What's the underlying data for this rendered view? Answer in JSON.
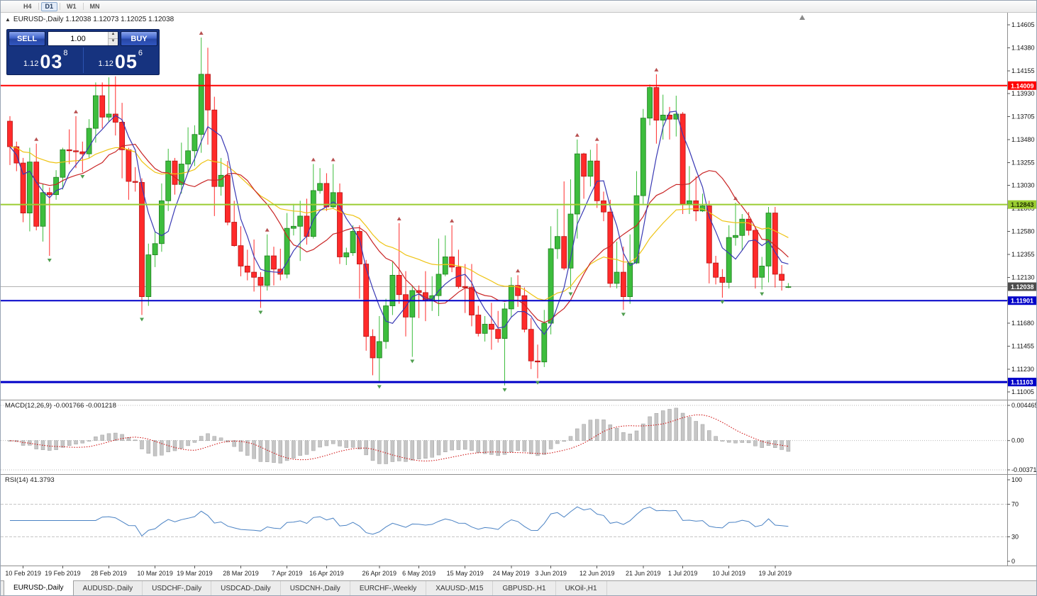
{
  "toolbar": {
    "periods": [
      {
        "label": "H4",
        "active": false
      },
      {
        "label": "D1",
        "active": true
      },
      {
        "label": "W1",
        "active": false
      },
      {
        "label": "MN",
        "active": false
      }
    ]
  },
  "chart_header": {
    "caption": "EURUSD-,Daily 1.12038 1.12073 1.12025 1.12038"
  },
  "trade_panel": {
    "sell_label": "SELL",
    "buy_label": "BUY",
    "volume": "1.00",
    "sell_prefix": "1.12",
    "sell_big": "03",
    "sell_sup": "8",
    "buy_prefix": "1.12",
    "buy_big": "05",
    "buy_sup": "6"
  },
  "price_axis": {
    "ticks": [
      "1.14605",
      "1.14380",
      "1.14155",
      "1.13930",
      "1.13705",
      "1.13480",
      "1.13255",
      "1.13030",
      "1.12805",
      "1.12580",
      "1.12355",
      "1.12130",
      "1.11905",
      "1.11680",
      "1.11455",
      "1.11230",
      "1.11005"
    ]
  },
  "current_price": {
    "value": 1.12038,
    "label": "1.12038",
    "label_bg": "#4d4d4d",
    "label_color": "#ffffff",
    "line_color": "#b2b2b2"
  },
  "hlines": [
    {
      "price": 1.14009,
      "color": "#ff0000",
      "width": 2,
      "label": "1.14009",
      "label_bg": "#ff0000",
      "label_color": "#ffffff"
    },
    {
      "price": 1.12843,
      "color": "#9acd32",
      "width": 2,
      "label": "1.12843",
      "label_bg": "#9acd32",
      "label_color": "#223300"
    },
    {
      "price": 1.11901,
      "color": "#0000c8",
      "width": 2,
      "label": "1.11901",
      "label_bg": "#0000c8",
      "label_color": "#ffffff"
    },
    {
      "price": 1.11103,
      "color": "#0000c8",
      "width": 3,
      "label": "1.11103",
      "label_bg": "#0000c8",
      "label_color": "#ffffff"
    }
  ],
  "macd": {
    "label": "MACD(12,26,9) -0.001766 -0.001218",
    "value": "-0.001766",
    "signal_value": "-0.001218",
    "fast": 12,
    "slow": 26,
    "signal": 9,
    "range": [
      -0.003715,
      0.004465
    ],
    "axis": [
      {
        "text": "0.004465",
        "value": 0.004465
      },
      {
        "text": "0.00",
        "value": 0
      },
      {
        "text": "-0.003715",
        "value": -0.003715
      }
    ],
    "bar_color": "#c6c6c6",
    "bar_border": "#9f9f9f",
    "signal_color": "#cc0000"
  },
  "rsi": {
    "label": "RSI(14) 41.3793",
    "period": 14,
    "value": 41.3793,
    "axis": [
      {
        "text": "100",
        "value": 100
      },
      {
        "text": "70",
        "value": 70
      },
      {
        "text": "30",
        "value": 30
      },
      {
        "text": "0",
        "value": 0
      }
    ],
    "levels": [
      70,
      30
    ],
    "line_color": "#4a82c4"
  },
  "time_axis": {
    "labels": [
      {
        "text": "10 Feb 2019",
        "index": 2
      },
      {
        "text": "19 Feb 2019",
        "index": 8
      },
      {
        "text": "28 Feb 2019",
        "index": 15
      },
      {
        "text": "10 Mar 2019",
        "index": 22
      },
      {
        "text": "19 Mar 2019",
        "index": 28
      },
      {
        "text": "28 Mar 2019",
        "index": 35
      },
      {
        "text": "7 Apr 2019",
        "index": 42
      },
      {
        "text": "16 Apr 2019",
        "index": 48
      },
      {
        "text": "26 Apr 2019",
        "index": 56
      },
      {
        "text": "6 May 2019",
        "index": 62
      },
      {
        "text": "15 May 2019",
        "index": 69
      },
      {
        "text": "24 May 2019",
        "index": 76
      },
      {
        "text": "3 Jun 2019",
        "index": 82
      },
      {
        "text": "12 Jun 2019",
        "index": 89
      },
      {
        "text": "21 Jun 2019",
        "index": 96
      },
      {
        "text": "1 Jul 2019",
        "index": 102
      },
      {
        "text": "10 Jul 2019",
        "index": 109
      },
      {
        "text": "19 Jul 2019",
        "index": 116
      }
    ]
  },
  "tabs": [
    {
      "label": "EURUSD-,Daily",
      "active": true
    },
    {
      "label": "AUDUSD-,Daily",
      "active": false
    },
    {
      "label": "USDCHF-,Daily",
      "active": false
    },
    {
      "label": "USDCAD-,Daily",
      "active": false
    },
    {
      "label": "USDCNH-,Daily",
      "active": false
    },
    {
      "label": "EURCHF-,Weekly",
      "active": false
    },
    {
      "label": "XAUUSD-,M15",
      "active": false
    },
    {
      "label": "GBPUSD-,H1",
      "active": false
    },
    {
      "label": "UKOil-,H1",
      "active": false
    }
  ],
  "fractals": {
    "up_color": "#b85050",
    "down_color": "#4f9e4f"
  },
  "chart_data": {
    "type": "candlestick",
    "symbol": "EURUSD-",
    "timeframe": "Daily",
    "ohlc_current": {
      "open": 1.12038,
      "high": 1.12073,
      "low": 1.12025,
      "close": 1.12038
    },
    "ylim": [
      1.1093,
      1.1473
    ],
    "up_color": "#3dbd3d",
    "up_border": "#1e7d1e",
    "down_color": "#ff2a2a",
    "down_border": "#b31212",
    "moving_averages": [
      {
        "name": "slow",
        "period": 30,
        "method": "ema",
        "color": "#eec312"
      },
      {
        "name": "medium",
        "period": 13,
        "method": "sma",
        "color": "#c92525"
      },
      {
        "name": "fast",
        "period": 5,
        "method": "sma",
        "color": "#3939b4"
      }
    ],
    "candles": [
      [
        "2019-02-07",
        1.1366,
        1.1371,
        1.1323,
        1.1341
      ],
      [
        "2019-02-08",
        1.1341,
        1.1346,
        1.1317,
        1.1325
      ],
      [
        "2019-02-11",
        1.1325,
        1.133,
        1.1267,
        1.1276
      ],
      [
        "2019-02-12",
        1.1276,
        1.134,
        1.1258,
        1.1326
      ],
      [
        "2019-02-13",
        1.1326,
        1.1344,
        1.1259,
        1.1263
      ],
      [
        "2019-02-14",
        1.1263,
        1.1305,
        1.1248,
        1.1296
      ],
      [
        "2019-02-15",
        1.1296,
        1.1301,
        1.1234,
        1.1294
      ],
      [
        "2019-02-18",
        1.1294,
        1.1318,
        1.1289,
        1.1311
      ],
      [
        "2019-02-19",
        1.1311,
        1.134,
        1.1299,
        1.1338
      ],
      [
        "2019-02-20",
        1.1338,
        1.1358,
        1.1324,
        1.1337
      ],
      [
        "2019-02-21",
        1.1337,
        1.1371,
        1.132,
        1.1336
      ],
      [
        "2019-02-22",
        1.1336,
        1.1346,
        1.1316,
        1.1334
      ],
      [
        "2019-02-25",
        1.1334,
        1.1368,
        1.133,
        1.1359
      ],
      [
        "2019-02-26",
        1.1359,
        1.1404,
        1.1345,
        1.1391
      ],
      [
        "2019-02-27",
        1.1391,
        1.1404,
        1.1359,
        1.137
      ],
      [
        "2019-02-28",
        1.137,
        1.1409,
        1.1365,
        1.1373
      ],
      [
        "2019-03-01",
        1.1373,
        1.141,
        1.1352,
        1.1365
      ],
      [
        "2019-03-04",
        1.1365,
        1.1384,
        1.131,
        1.1338
      ],
      [
        "2019-03-05",
        1.1338,
        1.134,
        1.1289,
        1.1307
      ],
      [
        "2019-03-06",
        1.1307,
        1.1321,
        1.1297,
        1.1306
      ],
      [
        "2019-03-07",
        1.1306,
        1.131,
        1.1176,
        1.1194
      ],
      [
        "2019-03-08",
        1.1194,
        1.1246,
        1.1185,
        1.1235
      ],
      [
        "2019-03-11",
        1.1235,
        1.1258,
        1.1223,
        1.1246
      ],
      [
        "2019-03-12",
        1.1246,
        1.1305,
        1.1238,
        1.1288
      ],
      [
        "2019-03-13",
        1.1288,
        1.1339,
        1.1278,
        1.1327
      ],
      [
        "2019-03-14",
        1.1327,
        1.133,
        1.1294,
        1.1304
      ],
      [
        "2019-03-15",
        1.1304,
        1.1345,
        1.1295,
        1.1324
      ],
      [
        "2019-03-18",
        1.1324,
        1.136,
        1.1315,
        1.1337
      ],
      [
        "2019-03-19",
        1.1337,
        1.1362,
        1.1322,
        1.1353
      ],
      [
        "2019-03-20",
        1.1353,
        1.1448,
        1.1335,
        1.1412
      ],
      [
        "2019-03-21",
        1.1412,
        1.1438,
        1.1343,
        1.1377
      ],
      [
        "2019-03-22",
        1.1377,
        1.139,
        1.1273,
        1.1302
      ],
      [
        "2019-03-25",
        1.1302,
        1.133,
        1.1293,
        1.1313
      ],
      [
        "2019-03-26",
        1.1313,
        1.1327,
        1.1264,
        1.1267
      ],
      [
        "2019-03-27",
        1.1267,
        1.1288,
        1.1243,
        1.1244
      ],
      [
        "2019-03-28",
        1.1244,
        1.1263,
        1.1214,
        1.1224
      ],
      [
        "2019-03-29",
        1.1224,
        1.124,
        1.121,
        1.1218
      ],
      [
        "2019-04-01",
        1.1218,
        1.125,
        1.1199,
        1.1213
      ],
      [
        "2019-04-02",
        1.1213,
        1.1218,
        1.1183,
        1.1205
      ],
      [
        "2019-04-03",
        1.1205,
        1.1255,
        1.12,
        1.1234
      ],
      [
        "2019-04-04",
        1.1234,
        1.1243,
        1.1205,
        1.1221
      ],
      [
        "2019-04-05",
        1.1221,
        1.1241,
        1.121,
        1.1216
      ],
      [
        "2019-04-08",
        1.1216,
        1.1276,
        1.1212,
        1.1261
      ],
      [
        "2019-04-09",
        1.1261,
        1.1285,
        1.1254,
        1.1263
      ],
      [
        "2019-04-10",
        1.1263,
        1.1288,
        1.1229,
        1.1273
      ],
      [
        "2019-04-11",
        1.1273,
        1.129,
        1.1245,
        1.1253
      ],
      [
        "2019-04-12",
        1.1253,
        1.1324,
        1.1251,
        1.1298
      ],
      [
        "2019-04-15",
        1.1298,
        1.132,
        1.1295,
        1.1305
      ],
      [
        "2019-04-16",
        1.1305,
        1.1315,
        1.1278,
        1.1282
      ],
      [
        "2019-04-17",
        1.1282,
        1.1324,
        1.128,
        1.1296
      ],
      [
        "2019-04-18",
        1.1296,
        1.1305,
        1.1226,
        1.1233
      ],
      [
        "2019-04-19",
        1.1233,
        1.1242,
        1.1225,
        1.1237
      ],
      [
        "2019-04-22",
        1.1237,
        1.1264,
        1.1234,
        1.1258
      ],
      [
        "2019-04-23",
        1.1258,
        1.1264,
        1.1192,
        1.1226
      ],
      [
        "2019-04-24",
        1.1226,
        1.123,
        1.1141,
        1.1155
      ],
      [
        "2019-04-25",
        1.1155,
        1.1162,
        1.1117,
        1.1134
      ],
      [
        "2019-04-26",
        1.1134,
        1.1175,
        1.111,
        1.115
      ],
      [
        "2019-04-29",
        1.115,
        1.1192,
        1.1143,
        1.1185
      ],
      [
        "2019-04-30",
        1.1185,
        1.1228,
        1.1176,
        1.1215
      ],
      [
        "2019-05-01",
        1.1215,
        1.1266,
        1.1187,
        1.1196
      ],
      [
        "2019-05-02",
        1.1196,
        1.1219,
        1.1155,
        1.1174
      ],
      [
        "2019-05-03",
        1.1174,
        1.1205,
        1.1135,
        1.12
      ],
      [
        "2019-05-06",
        1.12,
        1.1205,
        1.1173,
        1.1198
      ],
      [
        "2019-05-07",
        1.1198,
        1.1219,
        1.117,
        1.119
      ],
      [
        "2019-05-08",
        1.119,
        1.1214,
        1.118,
        1.1195
      ],
      [
        "2019-05-09",
        1.1195,
        1.1251,
        1.1175,
        1.1216
      ],
      [
        "2019-05-10",
        1.1216,
        1.1254,
        1.1214,
        1.1233
      ],
      [
        "2019-05-13",
        1.1233,
        1.1264,
        1.1218,
        1.1223
      ],
      [
        "2019-05-14",
        1.1223,
        1.124,
        1.1202,
        1.1204
      ],
      [
        "2019-05-15",
        1.1204,
        1.1226,
        1.1178,
        1.1203
      ],
      [
        "2019-05-16",
        1.1203,
        1.1226,
        1.1165,
        1.1176
      ],
      [
        "2019-05-17",
        1.1176,
        1.1185,
        1.1155,
        1.1158
      ],
      [
        "2019-05-20",
        1.1158,
        1.1175,
        1.115,
        1.1167
      ],
      [
        "2019-05-21",
        1.1167,
        1.1188,
        1.1142,
        1.1162
      ],
      [
        "2019-05-22",
        1.1162,
        1.118,
        1.1149,
        1.1153
      ],
      [
        "2019-05-23",
        1.1153,
        1.1188,
        1.1107,
        1.1182
      ],
      [
        "2019-05-24",
        1.1182,
        1.1213,
        1.1174,
        1.1205
      ],
      [
        "2019-05-27",
        1.1205,
        1.1215,
        1.1184,
        1.1195
      ],
      [
        "2019-05-28",
        1.1195,
        1.1203,
        1.1159,
        1.1162
      ],
      [
        "2019-05-29",
        1.1162,
        1.1173,
        1.1123,
        1.1131
      ],
      [
        "2019-05-30",
        1.1131,
        1.1147,
        1.1114,
        1.113
      ],
      [
        "2019-05-31",
        1.113,
        1.1181,
        1.1125,
        1.1168
      ],
      [
        "2019-06-03",
        1.1168,
        1.1263,
        1.1157,
        1.1241
      ],
      [
        "2019-06-04",
        1.1241,
        1.128,
        1.1231,
        1.1253
      ],
      [
        "2019-06-05",
        1.1253,
        1.1307,
        1.122,
        1.1222
      ],
      [
        "2019-06-06",
        1.1222,
        1.1309,
        1.1201,
        1.1275
      ],
      [
        "2019-06-07",
        1.1275,
        1.1348,
        1.1251,
        1.1334
      ],
      [
        "2019-06-10",
        1.1334,
        1.1335,
        1.129,
        1.1312
      ],
      [
        "2019-06-11",
        1.1312,
        1.1338,
        1.1302,
        1.1327
      ],
      [
        "2019-06-12",
        1.1327,
        1.1344,
        1.1281,
        1.1288
      ],
      [
        "2019-06-13",
        1.1288,
        1.1297,
        1.1268,
        1.1277
      ],
      [
        "2019-06-14",
        1.1277,
        1.1289,
        1.1203,
        1.1207
      ],
      [
        "2019-06-17",
        1.1207,
        1.1248,
        1.1202,
        1.1218
      ],
      [
        "2019-06-18",
        1.1218,
        1.1243,
        1.1181,
        1.1194
      ],
      [
        "2019-06-19",
        1.1194,
        1.1255,
        1.1187,
        1.1227
      ],
      [
        "2019-06-20",
        1.1227,
        1.1317,
        1.1226,
        1.1293
      ],
      [
        "2019-06-21",
        1.1293,
        1.1378,
        1.1285,
        1.1369
      ],
      [
        "2019-06-24",
        1.1369,
        1.1402,
        1.1362,
        1.1399
      ],
      [
        "2019-06-25",
        1.1399,
        1.1412,
        1.1344,
        1.1367
      ],
      [
        "2019-06-26",
        1.1367,
        1.1392,
        1.1348,
        1.1372
      ],
      [
        "2019-06-27",
        1.1372,
        1.138,
        1.1348,
        1.1368
      ],
      [
        "2019-06-28",
        1.1368,
        1.1391,
        1.1351,
        1.1373
      ],
      [
        "2019-07-01",
        1.1373,
        1.1375,
        1.1275,
        1.1285
      ],
      [
        "2019-07-02",
        1.1285,
        1.1322,
        1.1275,
        1.1288
      ],
      [
        "2019-07-03",
        1.1288,
        1.1312,
        1.1268,
        1.1278
      ],
      [
        "2019-07-04",
        1.1278,
        1.1295,
        1.1277,
        1.1283
      ],
      [
        "2019-07-05",
        1.1283,
        1.1288,
        1.1207,
        1.1227
      ],
      [
        "2019-07-08",
        1.1227,
        1.1234,
        1.1206,
        1.1213
      ],
      [
        "2019-07-09",
        1.1213,
        1.1221,
        1.1193,
        1.1208
      ],
      [
        "2019-07-10",
        1.1208,
        1.1264,
        1.1202,
        1.1252
      ],
      [
        "2019-07-11",
        1.1252,
        1.1286,
        1.1244,
        1.1254
      ],
      [
        "2019-07-12",
        1.1254,
        1.1275,
        1.1239,
        1.127
      ],
      [
        "2019-07-15",
        1.127,
        1.1277,
        1.1254,
        1.1259
      ],
      [
        "2019-07-16",
        1.1259,
        1.1263,
        1.1202,
        1.1213
      ],
      [
        "2019-07-17",
        1.1213,
        1.1233,
        1.1201,
        1.1224
      ],
      [
        "2019-07-18",
        1.1224,
        1.1282,
        1.1208,
        1.1276
      ],
      [
        "2019-07-19",
        1.1276,
        1.1282,
        1.1203,
        1.1216
      ],
      [
        "2019-07-22",
        1.1216,
        1.1225,
        1.12,
        1.121
      ],
      [
        "2019-07-23",
        1.12038,
        1.12073,
        1.12025,
        1.12038
      ]
    ]
  }
}
